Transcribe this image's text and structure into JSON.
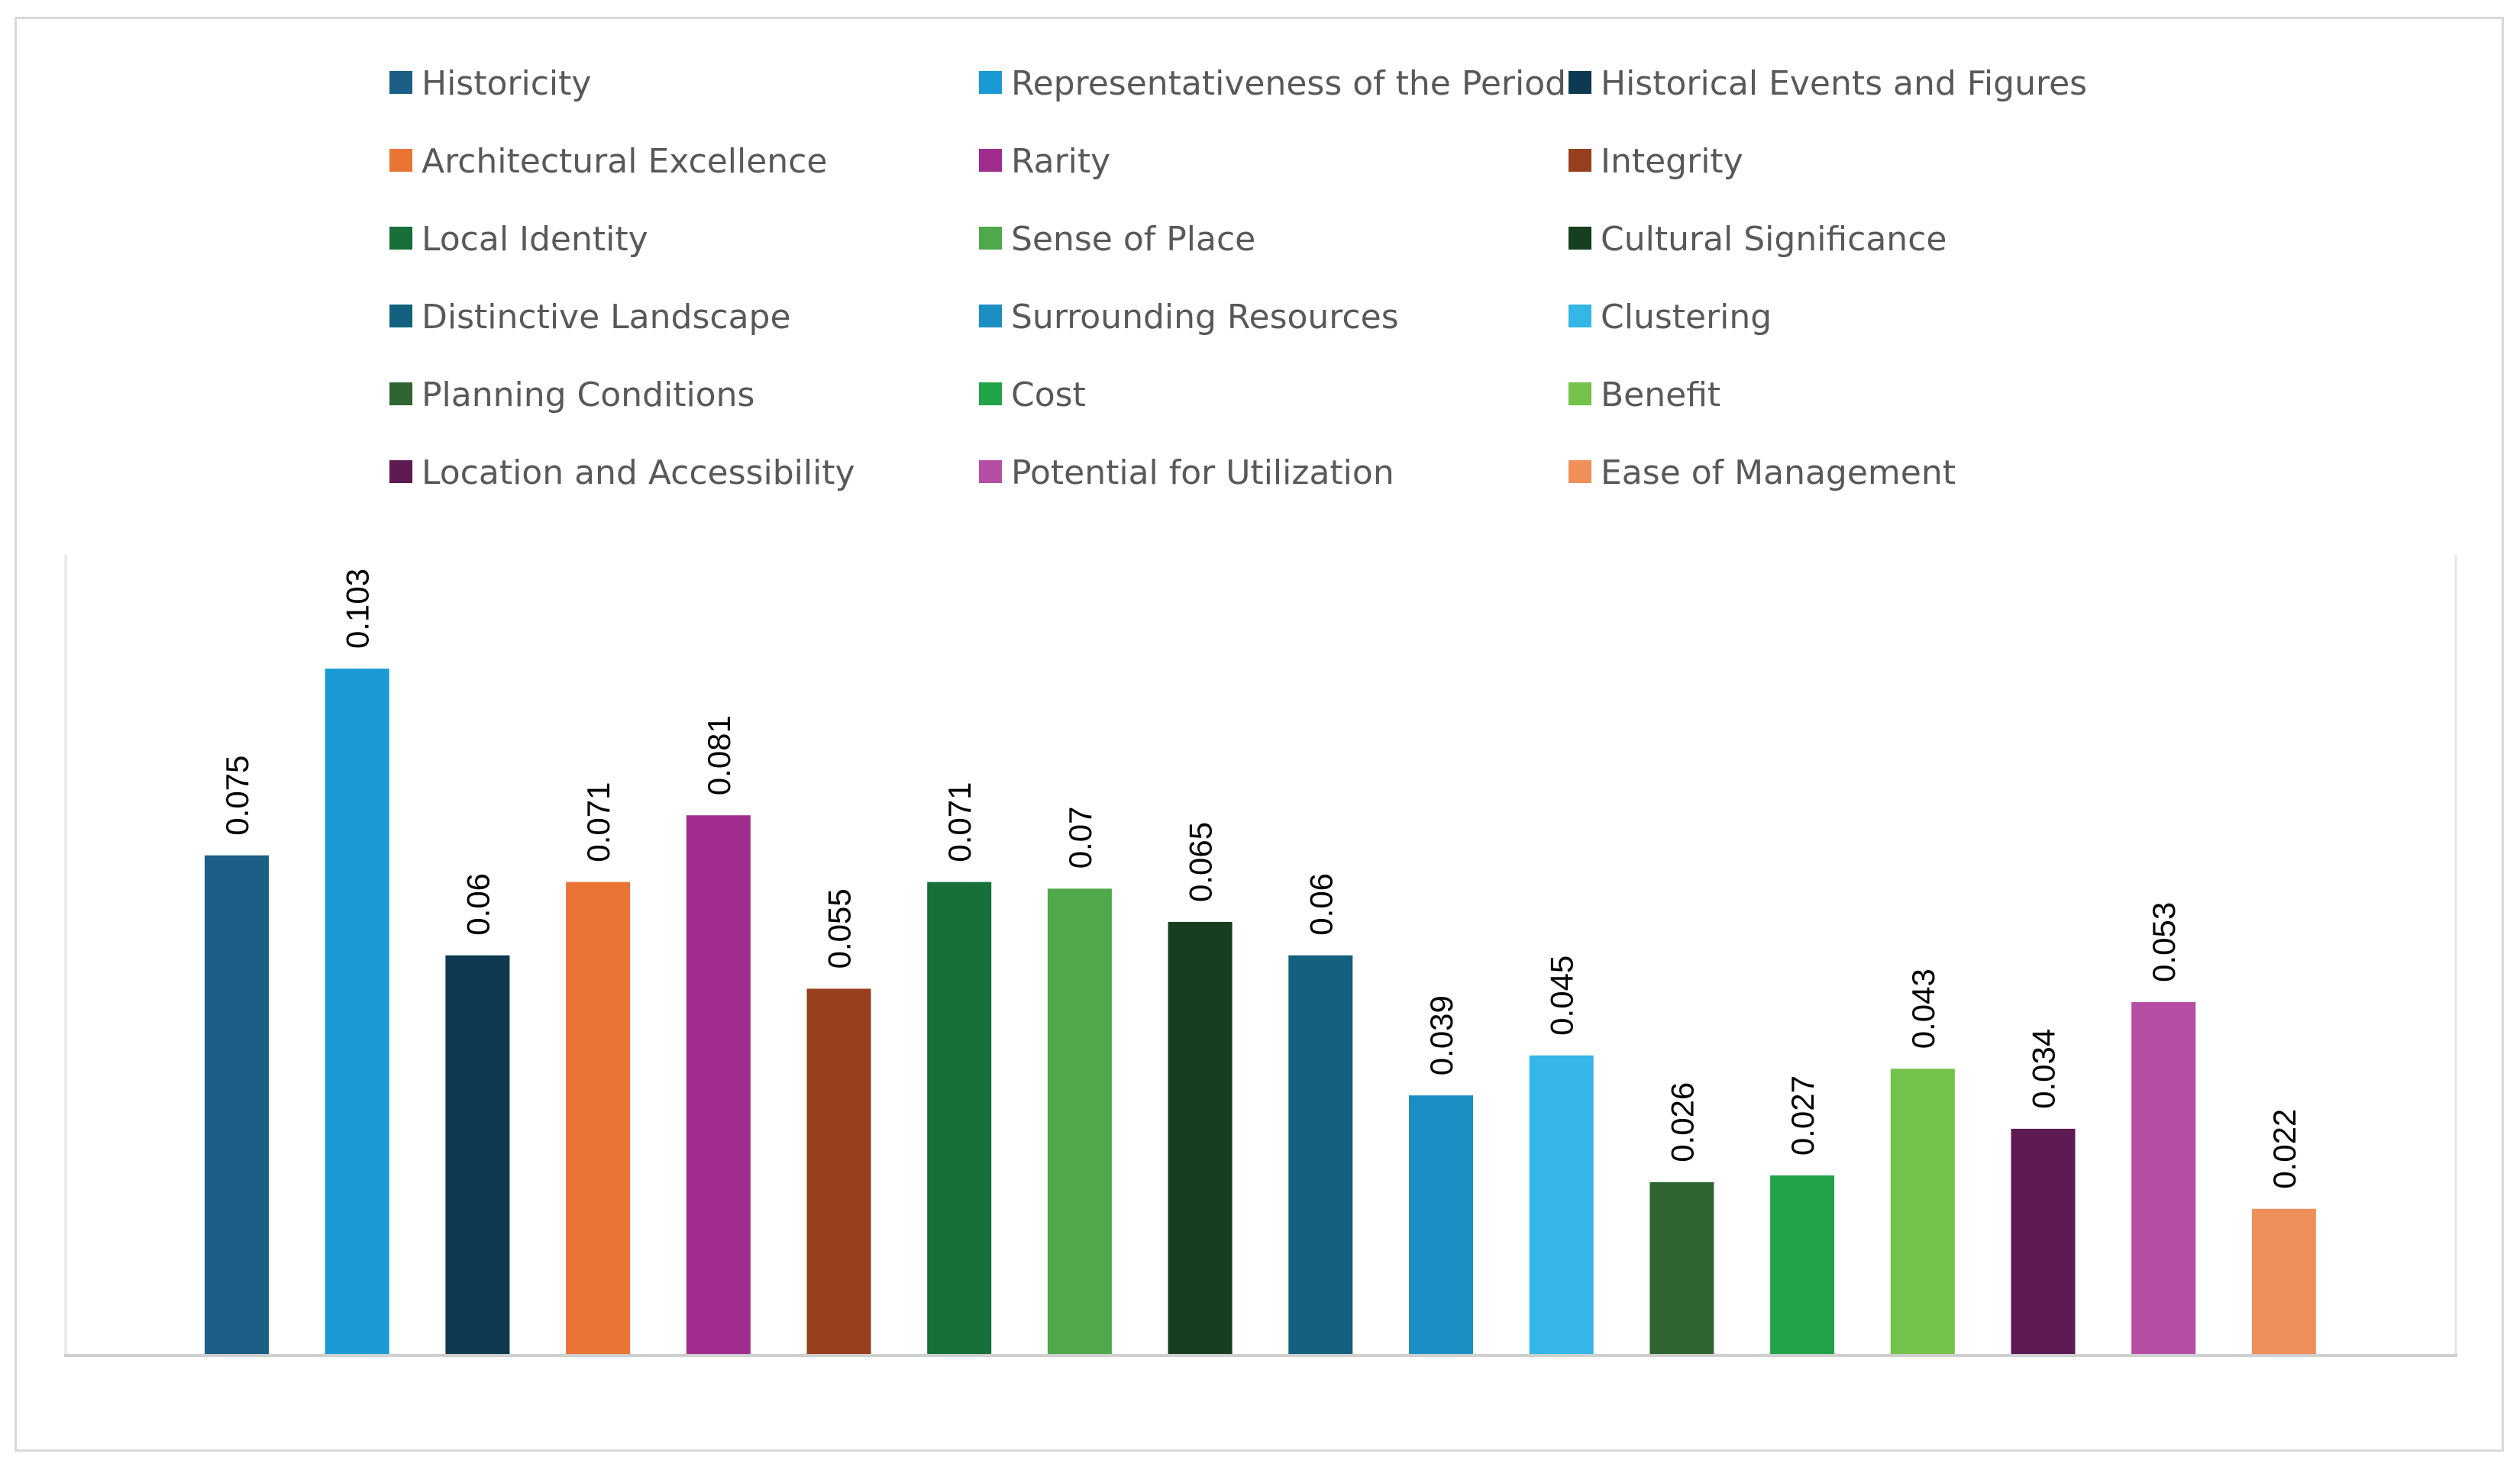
{
  "chart_data": {
    "type": "bar",
    "title": "",
    "xlabel": "",
    "ylabel": "",
    "ylim": [
      0,
      0.11
    ],
    "grid": false,
    "legend_position": "top",
    "series": [
      {
        "name": "Historicity",
        "value": 0.075,
        "label": "0.075",
        "color": "#1b5e86"
      },
      {
        "name": "Representativeness of the Period",
        "value": 0.103,
        "label": "0.103",
        "color": "#1a9bd6"
      },
      {
        "name": "Historical Events and Figures",
        "value": 0.06,
        "label": "0.06",
        "color": "#0e3a51"
      },
      {
        "name": "Architectural Excellence",
        "value": 0.071,
        "label": "0.071",
        "color": "#ea7434"
      },
      {
        "name": "Rarity",
        "value": 0.081,
        "label": "0.081",
        "color": "#a02c8e"
      },
      {
        "name": "Integrity",
        "value": 0.055,
        "label": "0.055",
        "color": "#973f1e"
      },
      {
        "name": "Local Identity",
        "value": 0.071,
        "label": "0.071",
        "color": "#176f3a"
      },
      {
        "name": "Sense of Place",
        "value": 0.07,
        "label": "0.07",
        "color": "#4fa84a"
      },
      {
        "name": "Cultural Significance",
        "value": 0.065,
        "label": "0.065",
        "color": "#173e1f"
      },
      {
        "name": "Distinctive Landscape",
        "value": 0.06,
        "label": "0.06",
        "color": "#14607f"
      },
      {
        "name": "Surrounding Resources",
        "value": 0.039,
        "label": "0.039",
        "color": "#1b8ec4"
      },
      {
        "name": "Clustering",
        "value": 0.045,
        "label": "0.045",
        "color": "#34b6e6"
      },
      {
        "name": "Planning Conditions",
        "value": 0.026,
        "label": "0.026",
        "color": "#2e6530"
      },
      {
        "name": "Cost",
        "value": 0.027,
        "label": "0.027",
        "color": "#22a347"
      },
      {
        "name": "Benefit",
        "value": 0.043,
        "label": "0.043",
        "color": "#74c14b"
      },
      {
        "name": "Location and Accessibility",
        "value": 0.034,
        "label": "0.034",
        "color": "#5e1a52"
      },
      {
        "name": "Potential for Utilization",
        "value": 0.053,
        "label": "0.053",
        "color": "#b54ea4"
      },
      {
        "name": "Ease of Management",
        "value": 0.022,
        "label": "0.022",
        "color": "#ef8f5a"
      }
    ]
  }
}
